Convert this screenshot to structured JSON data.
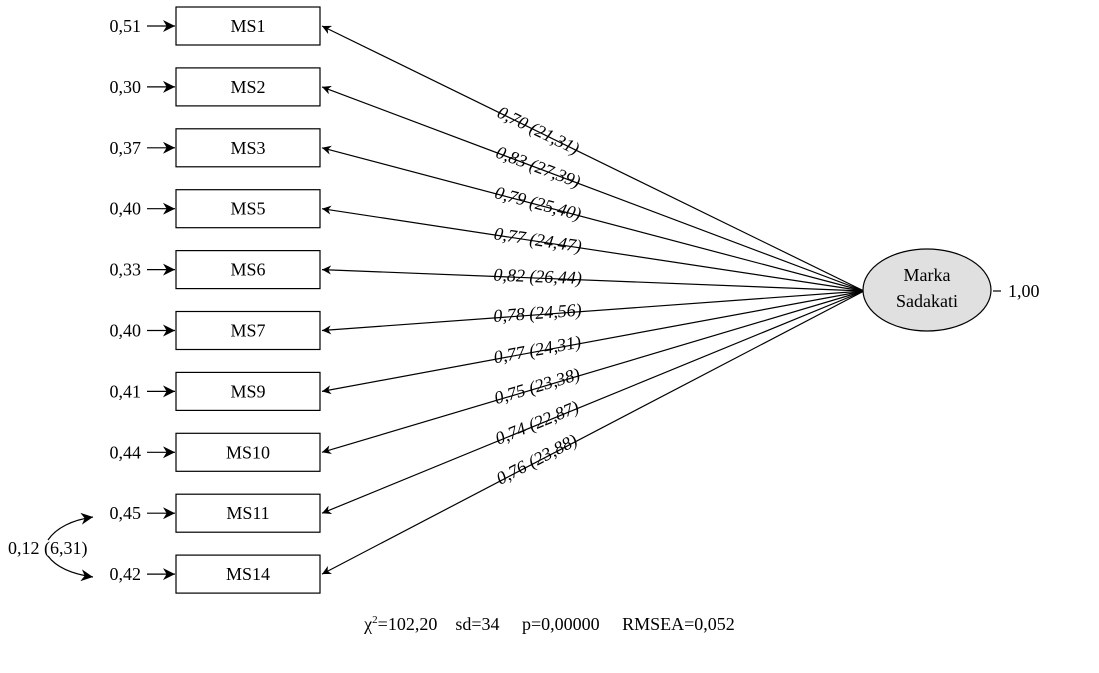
{
  "latent": {
    "label_line1": "Marka",
    "label_line2": "Sadakati",
    "variance": "1,00"
  },
  "indicators": [
    {
      "name": "MS1",
      "error": "0,51",
      "loading": "0,70 (21,31)"
    },
    {
      "name": "MS2",
      "error": "0,30",
      "loading": "0,83 (27,39)"
    },
    {
      "name": "MS3",
      "error": "0,37",
      "loading": "0,79 (25,40)"
    },
    {
      "name": "MS5",
      "error": "0,40",
      "loading": "0,77 (24,47)"
    },
    {
      "name": "MS6",
      "error": "0,33",
      "loading": "0,82 (26,44)"
    },
    {
      "name": "MS7",
      "error": "0,40",
      "loading": "0,78 (24,56)"
    },
    {
      "name": "MS9",
      "error": "0,41",
      "loading": "0,77 (24,31)"
    },
    {
      "name": "MS10",
      "error": "0,44",
      "loading": "0,75 (23,38)"
    },
    {
      "name": "MS11",
      "error": "0,45",
      "loading": "0,74 (22,87)"
    },
    {
      "name": "MS14",
      "error": "0,42",
      "loading": "0,76 (23,88)"
    }
  ],
  "error_covariance": {
    "between": [
      "MS11",
      "MS14"
    ],
    "label": "0,12 (6,31)"
  },
  "fit": {
    "chi_symbol": "χ",
    "chi_sup": "2",
    "chi_value": "=102,20",
    "sd": "sd=34",
    "p": "p=0,00000",
    "rmsea": "RMSEA=0,052"
  }
}
